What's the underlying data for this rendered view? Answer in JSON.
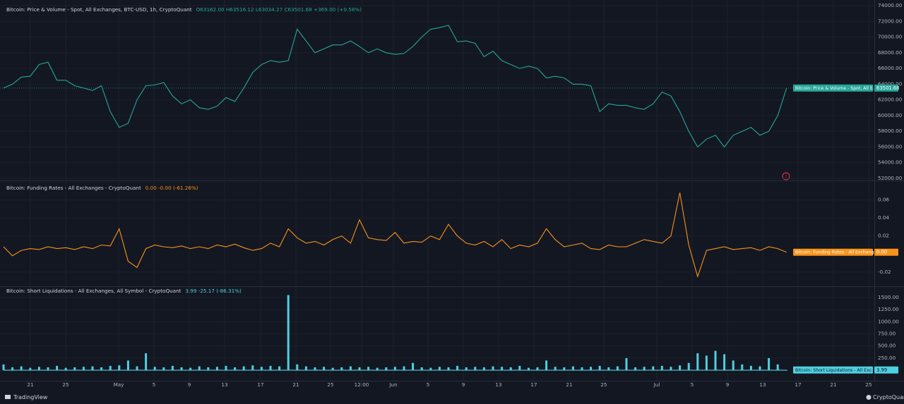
{
  "chart_data": [
    {
      "type": "line",
      "title": "Bitcoin: Price & Volume - Spot, All Exchanges, BTC-USD, 1h, CryptoQuant",
      "legend_values": "O63162.00 H63516.12 L63034.27 C63501.68 +369.00 (+0.58%)",
      "ylim": [
        51820,
        74720
      ],
      "yticks": [
        {
          "value": 52000,
          "label": "52000.00"
        },
        {
          "value": 54000,
          "label": "54000.00"
        },
        {
          "value": 56000,
          "label": "56000.00"
        },
        {
          "value": 58000,
          "label": "58000.00"
        },
        {
          "value": 60000,
          "label": "60000.00"
        },
        {
          "value": 62000,
          "label": "62000.00"
        },
        {
          "value": 64000,
          "label": "64000.00"
        },
        {
          "value": 66000,
          "label": "66000.00"
        },
        {
          "value": 68000,
          "label": "68000.00"
        },
        {
          "value": 70000,
          "label": "70000.00"
        },
        {
          "value": 72000,
          "label": "72000.00"
        },
        {
          "value": 74000,
          "label": "74000.00"
        }
      ],
      "grid": true,
      "series": [
        {
          "name": "Bitcoin: Price & Volume - Spot, All E...",
          "color": "#26a69a",
          "current_label": "63501.68",
          "values": [
            63500,
            64000,
            64900,
            65000,
            66500,
            66800,
            64500,
            64500,
            63800,
            63500,
            63200,
            63800,
            60500,
            58500,
            59000,
            62000,
            63800,
            63900,
            64200,
            62500,
            61500,
            62000,
            61000,
            60800,
            61200,
            62300,
            61800,
            63500,
            65500,
            66500,
            67000,
            66800,
            67000,
            71000,
            69500,
            68000,
            68500,
            69000,
            69000,
            69500,
            68800,
            68000,
            68500,
            68000,
            67800,
            67900,
            68800,
            70000,
            71000,
            71200,
            71500,
            69400,
            69500,
            69200,
            67500,
            68200,
            67000,
            66500,
            66000,
            66300,
            66000,
            64800,
            65000,
            64800,
            64000,
            64000,
            63800,
            60500,
            61500,
            61300,
            61300,
            61000,
            60800,
            61500,
            63000,
            62500,
            60500,
            58000,
            56000,
            57000,
            57500,
            56000,
            57500,
            58000,
            58500,
            57500,
            58000,
            60000,
            63501.68
          ]
        }
      ]
    },
    {
      "type": "line",
      "title": "Bitcoin: Funding Rates - All Exchanges - CryptoQuant",
      "legend_values": "0.00 -0.00 (-61.26%)",
      "ylim": [
        -0.035,
        0.08
      ],
      "yticks": [
        -0.02,
        0.02,
        0.04,
        0.06
      ],
      "grid": true,
      "series": [
        {
          "name": "Bitcoin: Funding Rates - All Exchanges",
          "color": "#f7931a",
          "current_label": "0.00",
          "values": [
            0.008,
            -0.002,
            0.004,
            0.006,
            0.005,
            0.008,
            0.006,
            0.007,
            0.005,
            0.008,
            0.006,
            0.01,
            0.009,
            0.028,
            -0.008,
            -0.015,
            0.006,
            0.01,
            0.008,
            0.007,
            0.009,
            0.006,
            0.008,
            0.006,
            0.01,
            0.008,
            0.011,
            0.007,
            0.004,
            0.006,
            0.012,
            0.008,
            0.028,
            0.018,
            0.012,
            0.014,
            0.01,
            0.016,
            0.02,
            0.012,
            0.038,
            0.018,
            0.016,
            0.015,
            0.024,
            0.012,
            0.014,
            0.013,
            0.02,
            0.016,
            0.033,
            0.02,
            0.012,
            0.01,
            0.014,
            0.008,
            0.016,
            0.006,
            0.01,
            0.008,
            0.012,
            0.028,
            0.016,
            0.008,
            0.01,
            0.012,
            0.006,
            0.005,
            0.01,
            0.008,
            0.008,
            0.012,
            0.016,
            0.014,
            0.012,
            0.02,
            0.068,
            0.01,
            -0.025,
            0.004,
            0.006,
            0.008,
            0.005,
            0.006,
            0.007,
            0.004,
            0.008,
            0.006,
            0.002
          ]
        }
      ]
    },
    {
      "type": "bar",
      "title": "Bitcoin: Short Liquidations - All Exchanges, All Symbol - CryptoQuant",
      "legend_values": "3.99 -25.17 (-86.31%)",
      "ylim": [
        -217,
        1717
      ],
      "yticks": [
        {
          "value": 250,
          "label": "250.00"
        },
        {
          "value": 500,
          "label": "500.00"
        },
        {
          "value": 750,
          "label": "750.00"
        },
        {
          "value": 1000,
          "label": "1000.00"
        },
        {
          "value": 1250,
          "label": "1250.00"
        },
        {
          "value": 1500,
          "label": "1500.00"
        }
      ],
      "grid": true,
      "series": [
        {
          "name": "Bitcoin: Short Liquidations - All Exc...",
          "color": "#4dd0e1",
          "current_label": "3.99",
          "values": [
            120,
            60,
            80,
            50,
            70,
            60,
            90,
            50,
            60,
            70,
            80,
            60,
            90,
            100,
            200,
            80,
            350,
            70,
            60,
            90,
            60,
            50,
            80,
            60,
            70,
            90,
            60,
            80,
            100,
            70,
            90,
            80,
            1550,
            120,
            80,
            60,
            70,
            50,
            60,
            80,
            60,
            70,
            50,
            60,
            70,
            80,
            150,
            60,
            50,
            70,
            60,
            90,
            60,
            70,
            60,
            80,
            70,
            60,
            90,
            50,
            60,
            200,
            70,
            60,
            80,
            60,
            70,
            90,
            60,
            80,
            250,
            60,
            70,
            80,
            90,
            70,
            100,
            150,
            350,
            300,
            400,
            330,
            200,
            120,
            90,
            80,
            250,
            120,
            3.99
          ]
        }
      ]
    }
  ],
  "time_axis": {
    "labels": [
      "21",
      "25",
      "May",
      "5",
      "9",
      "13",
      "17",
      "21",
      "25",
      "12:00",
      "Jun",
      "5",
      "9",
      "13",
      "17",
      "21",
      "25",
      "Jul",
      "5",
      "9",
      "13",
      "17",
      "21",
      "25"
    ]
  },
  "footer": {
    "left": "TradingView",
    "right": "CryptoQuant"
  }
}
